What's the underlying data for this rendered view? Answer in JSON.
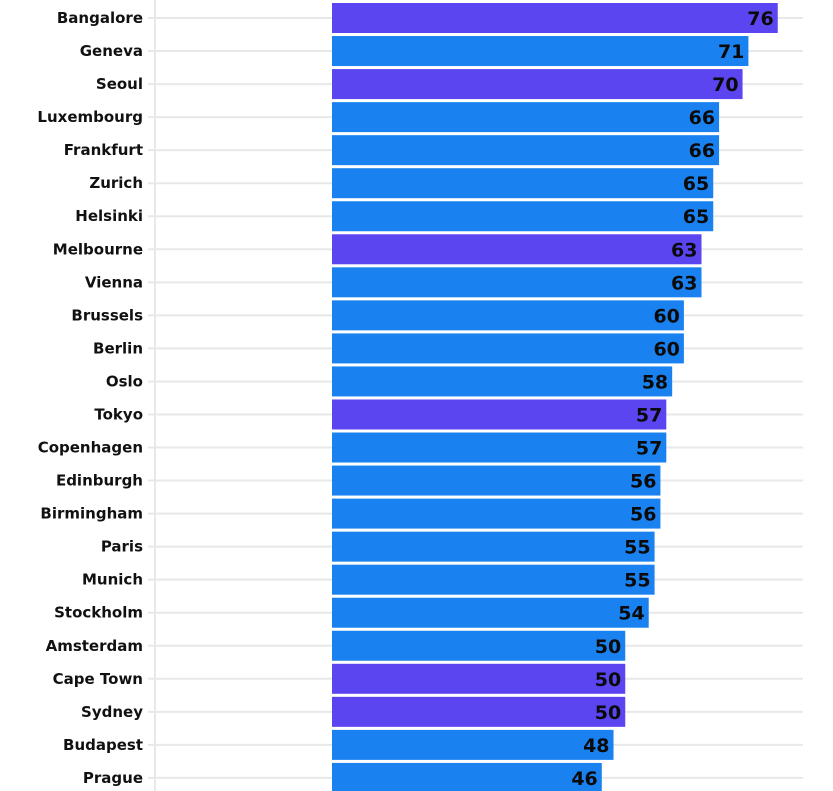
{
  "chart_data": {
    "type": "bar",
    "orientation": "horizontal",
    "categories": [
      "Bangalore",
      "Geneva",
      "Seoul",
      "Luxembourg",
      "Frankfurt",
      "Zurich",
      "Helsinki",
      "Melbourne",
      "Vienna",
      "Brussels",
      "Berlin",
      "Oslo",
      "Tokyo",
      "Copenhagen",
      "Edinburgh",
      "Birmingham",
      "Paris",
      "Munich",
      "Stockholm",
      "Amsterdam",
      "Cape Town",
      "Sydney",
      "Budapest",
      "Prague"
    ],
    "values": [
      76,
      71,
      70,
      66,
      66,
      65,
      65,
      63,
      63,
      60,
      60,
      58,
      57,
      57,
      56,
      56,
      55,
      55,
      54,
      50,
      50,
      50,
      48,
      46
    ],
    "highlight": [
      true,
      false,
      true,
      false,
      false,
      false,
      false,
      true,
      false,
      false,
      false,
      false,
      true,
      false,
      false,
      false,
      false,
      false,
      false,
      false,
      true,
      true,
      false,
      false
    ],
    "colors": {
      "default": "#1a82f0",
      "highlight": "#5b45f0",
      "grid": "#e8e8e8"
    },
    "xlim": [
      0,
      80
    ],
    "grid": true,
    "data_labels": true
  }
}
